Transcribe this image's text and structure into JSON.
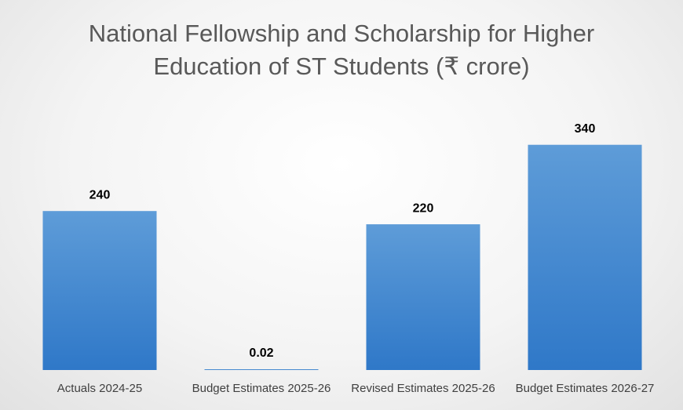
{
  "chart_data": {
    "type": "bar",
    "title": "National Fellowship and Scholarship for Higher Education of ST Students (₹ crore)",
    "categories": [
      "Actuals 2024-25",
      "Budget Estimates 2025-26",
      "Revised Estimates 2025-26",
      "Budget Estimates 2026-27"
    ],
    "values": [
      240,
      0.02,
      220,
      340
    ],
    "color": "#4a8bd2"
  }
}
